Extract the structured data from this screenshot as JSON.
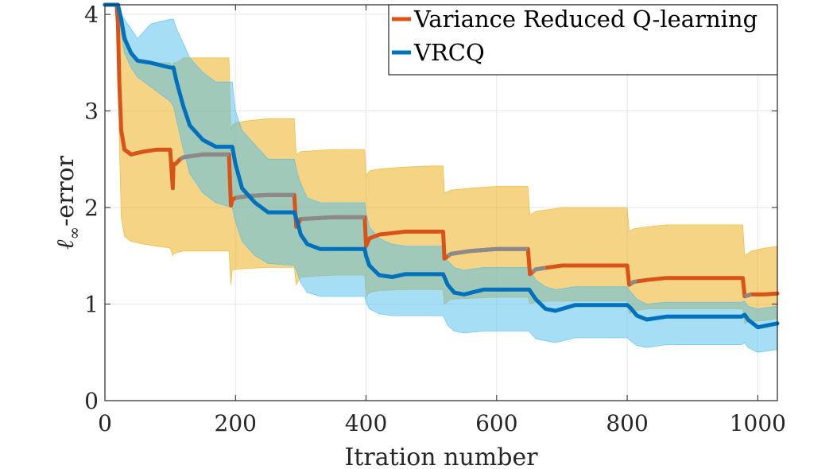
{
  "chart_data": {
    "type": "line",
    "title": "",
    "xlabel": "Itration number",
    "ylabel_main": "ℓ",
    "ylabel_sub": "∞",
    "ylabel_rest": "-error",
    "xlim": [
      0,
      1030
    ],
    "ylim": [
      0,
      4.1
    ],
    "xticks": [
      0,
      200,
      400,
      600,
      800,
      1000
    ],
    "yticks": [
      0,
      1,
      2,
      3,
      4
    ],
    "grid": true,
    "legend_position": "top-right",
    "colors": {
      "vrq_line": "#d95319",
      "vrq_band": "#edb120",
      "vrcq_line": "#0072bd",
      "vrcq_band": "#4dbeee",
      "overlap_line": "#8a8a8a",
      "overlap_band": "#77ac8a",
      "grid": "#e6e6e6",
      "axis": "#262626"
    },
    "series": [
      {
        "name": "Variance Reduced Q-learning",
        "x": [
          0,
          18,
          20,
          22,
          25,
          30,
          40,
          60,
          80,
          100,
          104,
          105,
          108,
          115,
          120,
          150,
          190,
          193,
          195,
          200,
          220,
          250,
          290,
          293,
          300,
          350,
          398,
          400,
          405,
          420,
          460,
          500,
          518,
          520,
          530,
          560,
          600,
          648,
          651,
          660,
          680,
          700,
          800,
          803,
          810,
          830,
          860,
          977,
          980,
          990,
          1010,
          1030
        ],
        "mean": [
          4.1,
          4.1,
          3.9,
          3.3,
          2.8,
          2.6,
          2.55,
          2.58,
          2.6,
          2.6,
          2.2,
          2.45,
          2.45,
          2.5,
          2.52,
          2.55,
          2.55,
          2.02,
          2.08,
          2.1,
          2.12,
          2.13,
          2.13,
          1.8,
          1.88,
          1.9,
          1.9,
          1.6,
          1.68,
          1.72,
          1.75,
          1.75,
          1.75,
          1.47,
          1.52,
          1.55,
          1.57,
          1.57,
          1.31,
          1.36,
          1.38,
          1.4,
          1.4,
          1.2,
          1.23,
          1.25,
          1.27,
          1.27,
          1.08,
          1.1,
          1.1,
          1.11
        ],
        "upper": [
          4.1,
          4.1,
          4.05,
          4.0,
          3.95,
          3.85,
          3.6,
          3.5,
          3.5,
          3.5,
          3.45,
          3.5,
          3.5,
          3.52,
          3.55,
          3.55,
          3.55,
          2.8,
          2.85,
          2.88,
          2.9,
          2.92,
          2.92,
          2.55,
          2.58,
          2.6,
          2.6,
          2.33,
          2.38,
          2.4,
          2.42,
          2.43,
          2.43,
          2.15,
          2.18,
          2.2,
          2.22,
          2.22,
          1.92,
          1.96,
          1.98,
          2.0,
          2.0,
          1.75,
          1.78,
          1.8,
          1.82,
          1.82,
          1.5,
          1.55,
          1.58,
          1.6
        ],
        "lower": [
          4.1,
          4.1,
          3.7,
          2.7,
          1.9,
          1.7,
          1.65,
          1.62,
          1.6,
          1.58,
          1.5,
          1.52,
          1.53,
          1.54,
          1.55,
          1.55,
          1.55,
          1.2,
          1.35,
          1.36,
          1.37,
          1.38,
          1.38,
          1.2,
          1.28,
          1.3,
          1.3,
          1.08,
          1.12,
          1.14,
          1.15,
          1.15,
          1.15,
          1.0,
          1.05,
          1.06,
          1.07,
          1.07,
          1.0,
          1.02,
          1.03,
          1.03,
          1.03,
          0.9,
          0.93,
          0.95,
          0.95,
          0.95,
          0.8,
          0.82,
          0.83,
          0.85
        ]
      },
      {
        "name": "VRCQ",
        "x": [
          0,
          18,
          20,
          25,
          30,
          40,
          50,
          70,
          100,
          105,
          110,
          120,
          130,
          150,
          170,
          195,
          200,
          210,
          230,
          250,
          290,
          295,
          300,
          310,
          330,
          350,
          398,
          400,
          405,
          420,
          440,
          460,
          518,
          520,
          525,
          535,
          550,
          580,
          650,
          652,
          660,
          675,
          690,
          720,
          800,
          805,
          815,
          830,
          860,
          975,
          980,
          985,
          1000,
          1030
        ],
        "mean": [
          4.1,
          4.1,
          4.1,
          3.95,
          3.75,
          3.6,
          3.52,
          3.5,
          3.45,
          3.45,
          3.3,
          3.05,
          2.85,
          2.7,
          2.63,
          2.63,
          2.45,
          2.2,
          2.05,
          1.95,
          1.95,
          1.85,
          1.72,
          1.62,
          1.57,
          1.57,
          1.57,
          1.5,
          1.4,
          1.3,
          1.28,
          1.31,
          1.31,
          1.28,
          1.2,
          1.12,
          1.1,
          1.15,
          1.15,
          1.13,
          1.05,
          0.95,
          0.93,
          0.99,
          0.99,
          0.96,
          0.88,
          0.84,
          0.87,
          0.87,
          0.89,
          0.84,
          0.76,
          0.8
        ],
        "upper": [
          4.1,
          4.1,
          4.1,
          4.0,
          3.95,
          3.85,
          3.75,
          3.9,
          3.95,
          3.95,
          3.85,
          3.7,
          3.55,
          3.4,
          3.3,
          3.3,
          3.0,
          2.8,
          2.65,
          2.5,
          2.5,
          2.35,
          2.25,
          2.1,
          2.05,
          2.05,
          2.05,
          1.95,
          1.8,
          1.68,
          1.62,
          1.6,
          1.6,
          1.55,
          1.45,
          1.38,
          1.35,
          1.38,
          1.38,
          1.35,
          1.25,
          1.18,
          1.15,
          1.18,
          1.18,
          1.13,
          1.05,
          1.0,
          1.02,
          1.02,
          1.03,
          0.98,
          0.95,
          0.98
        ],
        "lower": [
          4.1,
          4.1,
          4.05,
          3.8,
          3.6,
          3.45,
          3.35,
          3.25,
          3.1,
          3.05,
          2.9,
          2.6,
          2.35,
          2.15,
          2.05,
          2.0,
          1.85,
          1.65,
          1.5,
          1.42,
          1.4,
          1.32,
          1.22,
          1.12,
          1.08,
          1.08,
          1.08,
          1.02,
          0.95,
          0.9,
          0.88,
          0.88,
          0.88,
          0.85,
          0.78,
          0.72,
          0.7,
          0.72,
          0.72,
          0.7,
          0.64,
          0.62,
          0.6,
          0.65,
          0.65,
          0.62,
          0.57,
          0.55,
          0.58,
          0.58,
          0.6,
          0.55,
          0.5,
          0.53
        ]
      }
    ],
    "overlap_segments": [
      [
        115,
        190
      ],
      [
        200,
        290
      ],
      [
        300,
        398
      ],
      [
        525,
        648
      ],
      [
        655,
        675
      ],
      [
        805,
        815
      ],
      [
        980,
        990
      ]
    ]
  }
}
